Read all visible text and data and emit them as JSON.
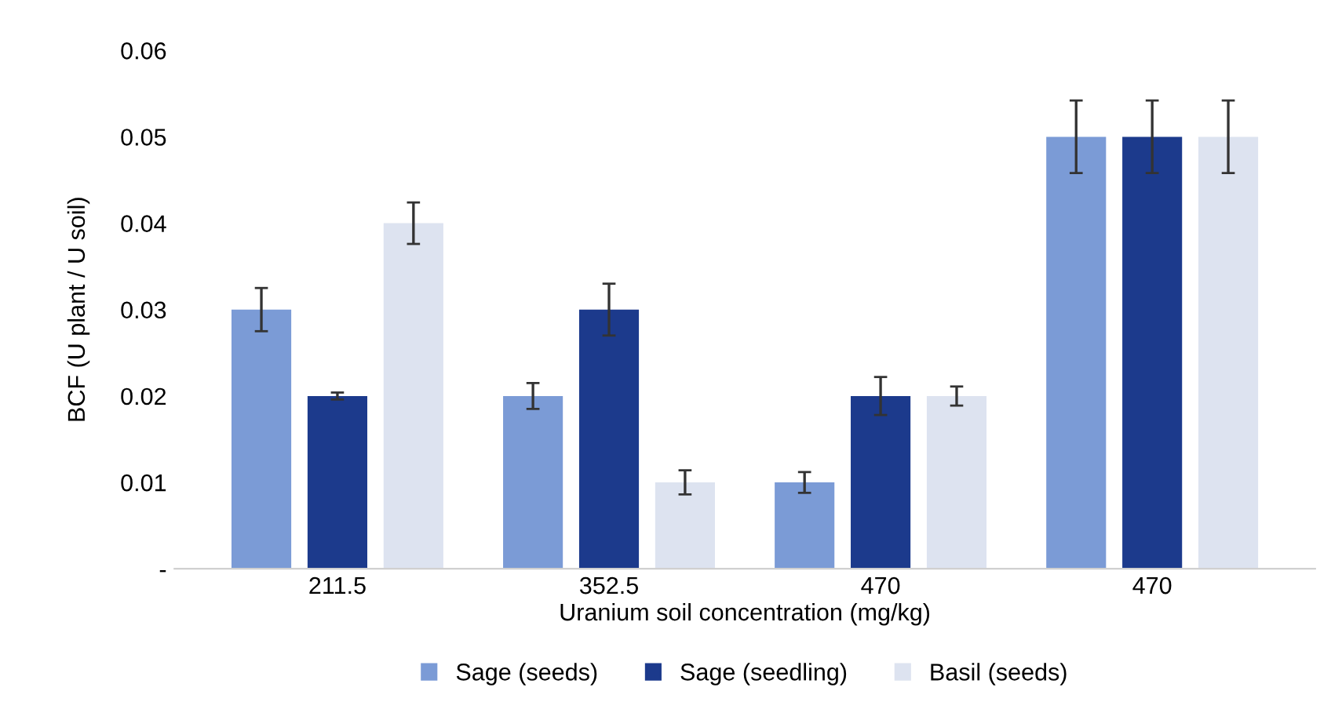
{
  "chart_data": {
    "type": "bar",
    "xlabel": "Uranium soil concentration (mg/kg)",
    "ylabel": "BCF (U plant / U soil)",
    "categories": [
      "211.5",
      "352.5",
      "470",
      "470"
    ],
    "series": [
      {
        "name": "Sage (seeds)",
        "color": "#7b9bd6",
        "values": [
          0.03,
          0.02,
          0.01,
          0.05
        ],
        "errors": [
          0.0025,
          0.0015,
          0.0012,
          0.0042
        ]
      },
      {
        "name": "Sage (seedling)",
        "color": "#1c3a8c",
        "values": [
          0.02,
          0.03,
          0.02,
          0.05
        ],
        "errors": [
          0.0004,
          0.003,
          0.0022,
          0.0042
        ]
      },
      {
        "name": "Basil (seeds)",
        "color": "#dde3f0",
        "values": [
          0.04,
          0.01,
          0.02,
          0.05
        ],
        "errors": [
          0.0024,
          0.0014,
          0.0011,
          0.0042
        ]
      }
    ],
    "ylim": [
      0,
      0.06
    ],
    "yticks": [
      {
        "value": 0,
        "label": "-"
      },
      0.01,
      0.02,
      0.03,
      0.04,
      0.05,
      0.06
    ],
    "grid": false,
    "legend": "bottom"
  }
}
